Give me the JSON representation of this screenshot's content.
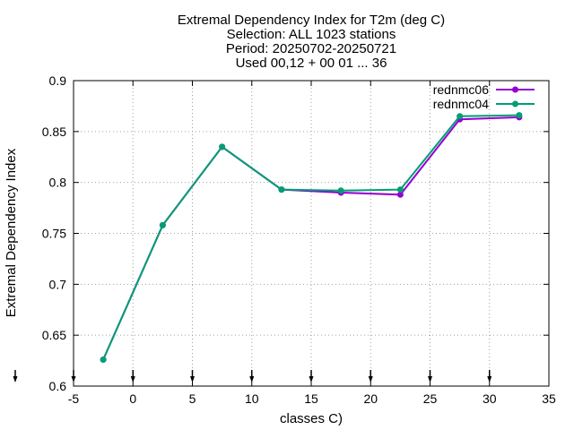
{
  "chart_data": {
    "type": "line",
    "title_lines": [
      "Extremal Dependency Index  for T2m (deg C)",
      "Selection: ALL    1023 stations",
      "Period: 20250702-20250721",
      "Used 00,12 + 00 01 ... 36"
    ],
    "xlabel": "classes C)",
    "ylabel": "Extremal Dependency Index",
    "xlim": [
      -5,
      35
    ],
    "ylim": [
      0.6,
      0.9
    ],
    "xticks": [
      -5,
      0,
      5,
      10,
      15,
      20,
      25,
      30,
      35
    ],
    "yticks": [
      0.6,
      0.65,
      0.7,
      0.75,
      0.8,
      0.85,
      0.9
    ],
    "xtick_labels": [
      "-5",
      "0",
      "5",
      "10",
      "15",
      "20",
      "25",
      "30",
      "35"
    ],
    "ytick_labels": [
      "0.6",
      "0.65",
      "0.7",
      "0.75",
      "0.8",
      "0.85",
      "0.9"
    ],
    "grid": true,
    "legend_position": "top-right",
    "x": [
      -2.5,
      2.5,
      7.5,
      12.5,
      17.5,
      22.5,
      27.5,
      32.5
    ],
    "series": [
      {
        "name": "rednmc06",
        "color": "#9400d3",
        "values": [
          0.626,
          0.758,
          0.835,
          0.793,
          0.79,
          0.788,
          0.862,
          0.864
        ]
      },
      {
        "name": "rednmc04",
        "color": "#009e73",
        "values": [
          0.626,
          0.758,
          0.835,
          0.793,
          0.792,
          0.793,
          0.865,
          0.866
        ]
      }
    ],
    "bottom_markers_x": [
      -5,
      0,
      5,
      10,
      15,
      20,
      25,
      30
    ]
  }
}
